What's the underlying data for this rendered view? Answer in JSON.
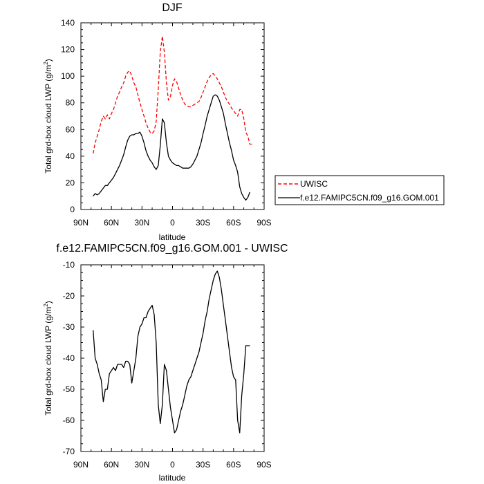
{
  "chart_data": [
    {
      "type": "line",
      "title": "DJF",
      "xlabel": "latitude",
      "ylabel": "Total grd-box cloud LWP (g/m",
      "ylabel_sup": "2",
      "ylabel_end": ")",
      "xlim": [
        90,
        -90
      ],
      "ylim": [
        0,
        140
      ],
      "x_ticks": [
        90,
        60,
        30,
        0,
        -30,
        -60,
        -90
      ],
      "x_tick_labels": [
        "90N",
        "60N",
        "30N",
        "0",
        "30S",
        "60S",
        "90S"
      ],
      "y_ticks": [
        0,
        20,
        40,
        60,
        80,
        100,
        120,
        140
      ],
      "y_tick_labels": [
        "0",
        "20",
        "40",
        "60",
        "80",
        "100",
        "120",
        "140"
      ],
      "legend": "outside-right",
      "series": [
        {
          "name": "UWISC",
          "color": "#ff0000",
          "dash": "dashed",
          "x": [
            78,
            76,
            74,
            72,
            70,
            68,
            66,
            64,
            62,
            60,
            58,
            56,
            54,
            52,
            50,
            48,
            46,
            44,
            42,
            40,
            38,
            36,
            34,
            32,
            30,
            28,
            26,
            24,
            22,
            20,
            18,
            16,
            14,
            12,
            10,
            8,
            6,
            4,
            2,
            0,
            -2,
            -4,
            -6,
            -8,
            -10,
            -12,
            -14,
            -16,
            -18,
            -20,
            -22,
            -24,
            -26,
            -28,
            -30,
            -32,
            -34,
            -36,
            -38,
            -40,
            -42,
            -44,
            -46,
            -48,
            -50,
            -52,
            -54,
            -56,
            -58,
            -60,
            -62,
            -64,
            -66,
            -68,
            -70,
            -72,
            -74,
            -76,
            -78
          ],
          "y": [
            42,
            50,
            55,
            60,
            66,
            70,
            68,
            71,
            68,
            72,
            75,
            80,
            85,
            88,
            92,
            95,
            100,
            103,
            104,
            100,
            95,
            92,
            86,
            80,
            75,
            70,
            65,
            61,
            58,
            57,
            59,
            66,
            90,
            118,
            130,
            118,
            95,
            82,
            85,
            93,
            98,
            96,
            91,
            86,
            82,
            79,
            78,
            77,
            77,
            78,
            79,
            80,
            81,
            84,
            88,
            92,
            96,
            99,
            101,
            102,
            100,
            98,
            95,
            92,
            88,
            84,
            81,
            79,
            76,
            74,
            72,
            70,
            75,
            75,
            68,
            58,
            55,
            49,
            49
          ],
          "x_line": [
            78,
            76,
            74,
            72,
            70,
            68,
            66,
            64,
            62,
            60,
            58,
            56,
            54,
            52,
            50,
            48,
            46,
            44,
            42,
            40,
            38,
            36,
            34,
            32,
            30,
            28,
            26,
            24,
            22,
            20,
            18,
            16,
            14,
            12,
            10,
            8,
            6,
            4,
            2,
            0,
            -2,
            -4,
            -6,
            -8,
            -10,
            -12,
            -14,
            -16,
            -18,
            -20,
            -22,
            -24,
            -26,
            -28,
            -30,
            -32,
            -34,
            -36,
            -38,
            -40,
            -42,
            -44,
            -46,
            -48,
            -50,
            -52,
            -54,
            -56,
            -58,
            -60,
            -62,
            -64,
            -66,
            -68,
            -70,
            -72,
            -74,
            -76
          ]
        },
        {
          "name": "f.e12.FAMIPC5CN.f09_g16.GOM.001",
          "color": "#000000",
          "dash": "solid",
          "x": [
            78,
            76,
            74,
            72,
            70,
            68,
            66,
            64,
            62,
            60,
            58,
            56,
            54,
            52,
            50,
            48,
            46,
            44,
            42,
            40,
            38,
            36,
            34,
            32,
            30,
            28,
            26,
            24,
            22,
            20,
            18,
            16,
            14,
            12,
            10,
            8,
            6,
            4,
            2,
            0,
            -2,
            -4,
            -6,
            -8,
            -10,
            -12,
            -14,
            -16,
            -18,
            -20,
            -22,
            -24,
            -26,
            -28,
            -30,
            -32,
            -34,
            -36,
            -38,
            -40,
            -42,
            -44,
            -46,
            -48,
            -50,
            -52,
            -54,
            -56,
            -58,
            -60,
            -62,
            -64,
            -66,
            -68,
            -70,
            -72,
            -74,
            -76
          ],
          "y": [
            10,
            12,
            11,
            12,
            14,
            16,
            18,
            18,
            20,
            22,
            24,
            27,
            30,
            33,
            37,
            41,
            47,
            52,
            55,
            56,
            56,
            57,
            57,
            58,
            55,
            50,
            44,
            40,
            37,
            35,
            32,
            30,
            33,
            48,
            68,
            65,
            50,
            40,
            37,
            35,
            34,
            33,
            33,
            32,
            31,
            31,
            31,
            31,
            32,
            34,
            37,
            40,
            45,
            50,
            57,
            63,
            70,
            75,
            80,
            85,
            86,
            85,
            82,
            77,
            72,
            64,
            57,
            50,
            44,
            37,
            33,
            28,
            17,
            12,
            9,
            7,
            9,
            13
          ]
        }
      ]
    },
    {
      "type": "line",
      "title": "f.e12.FAMIPC5CN.f09_g16.GOM.001 - UWISC",
      "xlabel": "latitude",
      "ylabel": "Total grd-box cloud LWP (g/m",
      "ylabel_sup": "2",
      "ylabel_end": ")",
      "xlim": [
        90,
        -90
      ],
      "ylim": [
        -70,
        -10
      ],
      "x_ticks": [
        90,
        60,
        30,
        0,
        -30,
        -60,
        -90
      ],
      "x_tick_labels": [
        "90N",
        "60N",
        "30N",
        "0",
        "30S",
        "60S",
        "90S"
      ],
      "y_ticks": [
        -70,
        -60,
        -50,
        -40,
        -30,
        -20,
        -10
      ],
      "y_tick_labels": [
        "-70",
        "-60",
        "-50",
        "-40",
        "-30",
        "-20",
        "-10"
      ],
      "series": [
        {
          "color": "#000000",
          "dash": "solid",
          "x": [
            78,
            76,
            74,
            72,
            70,
            68,
            66,
            64,
            62,
            60,
            58,
            56,
            54,
            52,
            50,
            48,
            46,
            44,
            42,
            40,
            38,
            36,
            34,
            32,
            30,
            28,
            26,
            24,
            22,
            20,
            18,
            16,
            14,
            12,
            10,
            8,
            6,
            4,
            2,
            0,
            -2,
            -4,
            -6,
            -8,
            -10,
            -12,
            -14,
            -16,
            -18,
            -20,
            -22,
            -24,
            -26,
            -28,
            -30,
            -32,
            -34,
            -36,
            -38,
            -40,
            -42,
            -44,
            -46,
            -48,
            -50,
            -52,
            -54,
            -56,
            -58,
            -60,
            -62,
            -64,
            -66,
            -68,
            -70,
            -72,
            -74,
            -76
          ],
          "y": [
            -31,
            -40,
            -42,
            -45,
            -47,
            -54,
            -50,
            -50,
            -45,
            -44,
            -43,
            -44,
            -42,
            -42,
            -42,
            -43,
            -41,
            -41,
            -42,
            -48,
            -44,
            -40,
            -33,
            -30,
            -29,
            -27,
            -27,
            -25,
            -24,
            -23,
            -26,
            -35,
            -55,
            -61,
            -55,
            -42,
            -44,
            -50,
            -56,
            -60,
            -64,
            -63,
            -60,
            -57,
            -55,
            -52,
            -49,
            -47,
            -46,
            -44,
            -42,
            -40,
            -38,
            -35,
            -32,
            -28,
            -25,
            -21,
            -18,
            -15,
            -13,
            -12,
            -14,
            -18,
            -23,
            -28,
            -33,
            -38,
            -43,
            -46,
            -47,
            -60,
            -64,
            -52,
            -45,
            -36,
            -36,
            -36
          ]
        }
      ]
    }
  ]
}
